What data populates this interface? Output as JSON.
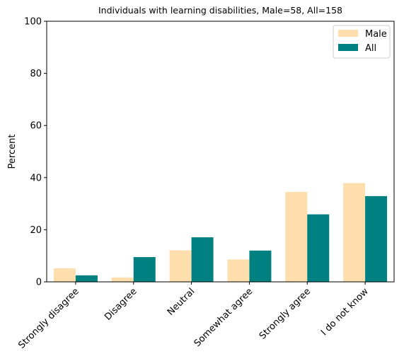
{
  "chart_data": {
    "type": "bar",
    "title": "Individuals with learning disabilities, Male=58, All=158",
    "xlabel": "",
    "ylabel": "Percent",
    "ylim": [
      0,
      100
    ],
    "yticks": [
      0,
      20,
      40,
      60,
      80,
      100
    ],
    "categories": [
      "Strongly disagree",
      "Disagree",
      "Neutral",
      "Somewhat agree",
      "Strongly agree",
      "I do not know"
    ],
    "series": [
      {
        "name": "Male",
        "color": "#FFDEAD",
        "values": [
          5.2,
          1.7,
          12.1,
          8.6,
          34.5,
          37.9
        ]
      },
      {
        "name": "All",
        "color": "#008080",
        "values": [
          2.5,
          9.5,
          17.1,
          12.0,
          25.9,
          32.9
        ]
      }
    ],
    "legend": "top-right",
    "grid": false
  }
}
